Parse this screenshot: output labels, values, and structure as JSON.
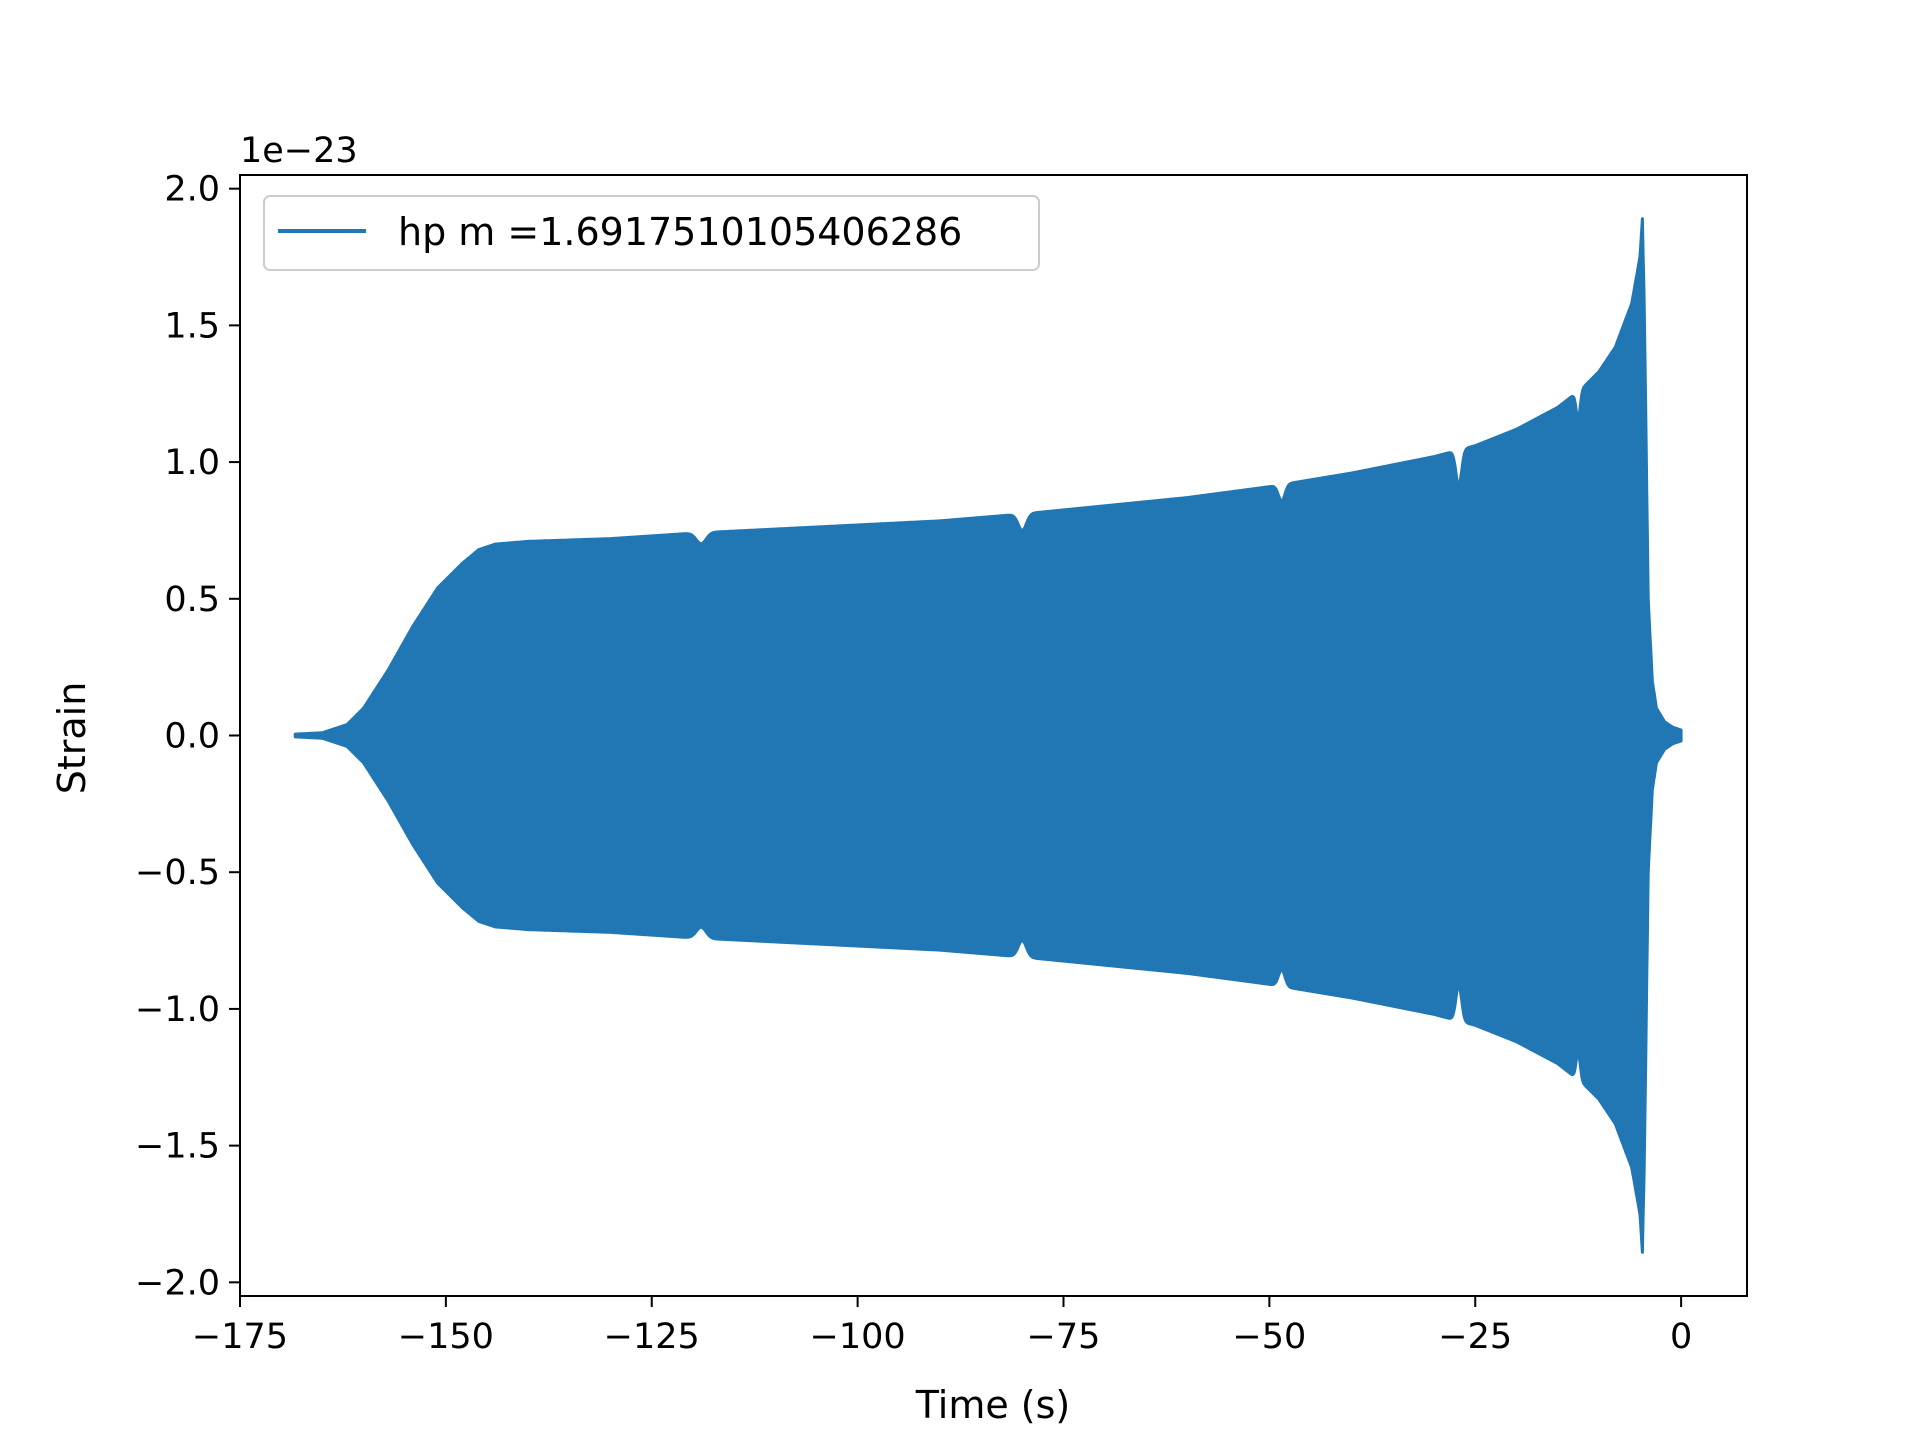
{
  "chart_data": {
    "type": "line",
    "title": "",
    "xlabel": "Time (s)",
    "ylabel": "Strain",
    "y_offset_text": "1e−23",
    "xlim": [
      -175,
      8
    ],
    "ylim": [
      -2.05,
      2.05
    ],
    "xticks": [
      -175,
      -150,
      -125,
      -100,
      -75,
      -50,
      -25,
      0
    ],
    "xtick_labels": [
      "−175",
      "−150",
      "−125",
      "−100",
      "−75",
      "−50",
      "−25",
      "0"
    ],
    "yticks": [
      -2.0,
      -1.5,
      -1.0,
      -0.5,
      0.0,
      0.5,
      1.0,
      1.5,
      2.0
    ],
    "ytick_labels": [
      "−2.0",
      "−1.5",
      "−1.0",
      "−0.5",
      "0.0",
      "0.5",
      "1.0",
      "1.5",
      "2.0"
    ],
    "grid": false,
    "legend_position": "top-left",
    "series": [
      {
        "name": "hp m =1.6917510105406286",
        "color": "#2077b4",
        "note_envelope": "densely oscillating strain; upper/lower envelope amplitude in units of 1e-23",
        "envelope_x": [
          -168.3,
          -165,
          -162,
          -160,
          -157,
          -154,
          -151,
          -148,
          -146,
          -144,
          -140,
          -130,
          -120,
          -110,
          -100,
          -90,
          -80,
          -70,
          -60,
          -50,
          -40,
          -30,
          -25,
          -20,
          -15,
          -12,
          -10,
          -8,
          -6,
          -5,
          -4.7,
          -4.5,
          -4.3,
          -4.0,
          -3.5,
          -3.0,
          -2.0,
          -1.0,
          0.0
        ],
        "envelope_y": [
          0.005,
          0.01,
          0.04,
          0.1,
          0.24,
          0.4,
          0.54,
          0.63,
          0.68,
          0.7,
          0.71,
          0.72,
          0.74,
          0.755,
          0.77,
          0.785,
          0.81,
          0.84,
          0.87,
          0.91,
          0.96,
          1.02,
          1.06,
          1.12,
          1.2,
          1.27,
          1.33,
          1.42,
          1.58,
          1.75,
          1.89,
          1.6,
          1.2,
          0.5,
          0.2,
          0.1,
          0.05,
          0.03,
          0.02
        ]
      }
    ]
  }
}
